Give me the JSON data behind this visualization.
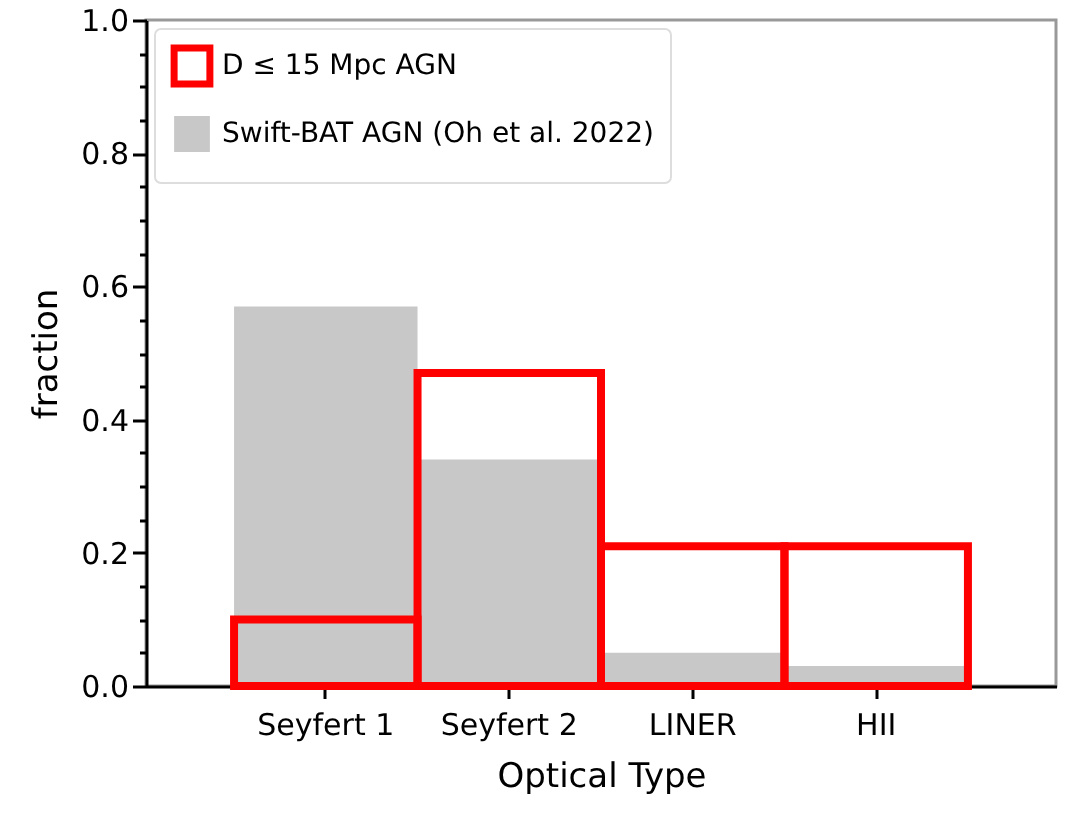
{
  "chart_data": {
    "type": "bar",
    "xlabel": "Optical Type",
    "ylabel": "fraction",
    "categories": [
      "Seyfert 1",
      "Seyfert 2",
      "LINER",
      "HII"
    ],
    "series": [
      {
        "name": "D ≤ 15 Mpc AGN",
        "color": "#ff0000",
        "values": [
          0.1,
          0.47,
          0.21,
          0.21
        ]
      },
      {
        "name": "Swift-BAT AGN (Oh et al. 2022)",
        "color": "#c8c8c8",
        "values": [
          0.57,
          0.34,
          0.05,
          0.03
        ]
      }
    ],
    "ylim": [
      0,
      1
    ],
    "yticks": [
      {
        "value": 0,
        "label": "0.0"
      },
      {
        "value": 0.05,
        "label": null
      },
      {
        "value": 0.1,
        "label": null
      },
      {
        "value": 0.15,
        "label": null
      },
      0.2,
      {
        "value": 0.25,
        "label": null
      },
      {
        "value": 0.3,
        "label": null
      },
      {
        "value": 0.35,
        "label": null
      },
      0.4,
      {
        "value": 0.45,
        "label": null
      },
      {
        "value": 0.5,
        "label": null
      },
      {
        "value": 0.55,
        "label": null
      },
      0.6,
      {
        "value": 0.65,
        "label": null
      },
      {
        "value": 0.7,
        "label": null
      },
      {
        "value": 0.75,
        "label": null
      },
      0.8,
      {
        "value": 0.85,
        "label": null
      },
      {
        "value": 0.9,
        "label": null
      },
      {
        "value": 0.95,
        "label": null
      },
      {
        "value": 1,
        "label": "1.0"
      }
    ],
    "grid": false,
    "legend": "top left"
  }
}
